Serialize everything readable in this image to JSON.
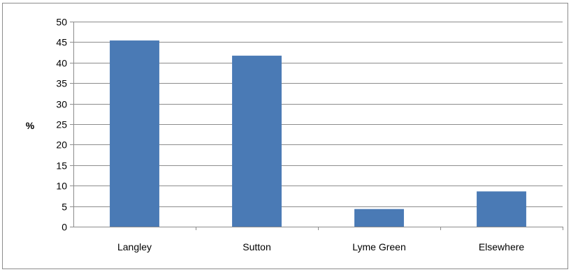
{
  "chart_data": {
    "type": "bar",
    "title": "",
    "xlabel": "",
    "ylabel": "%",
    "categories": [
      "Langley",
      "Sutton",
      "Lyme Green",
      "Elsewhere"
    ],
    "values": [
      45.4,
      41.7,
      4.3,
      8.6
    ],
    "ylim": [
      0,
      50
    ],
    "yticks": [
      0,
      5,
      10,
      15,
      20,
      25,
      30,
      35,
      40,
      45,
      50
    ],
    "grid": true,
    "legend": "none",
    "bar_color": "#4A7AB5",
    "grid_color": "#8C8C8C"
  }
}
